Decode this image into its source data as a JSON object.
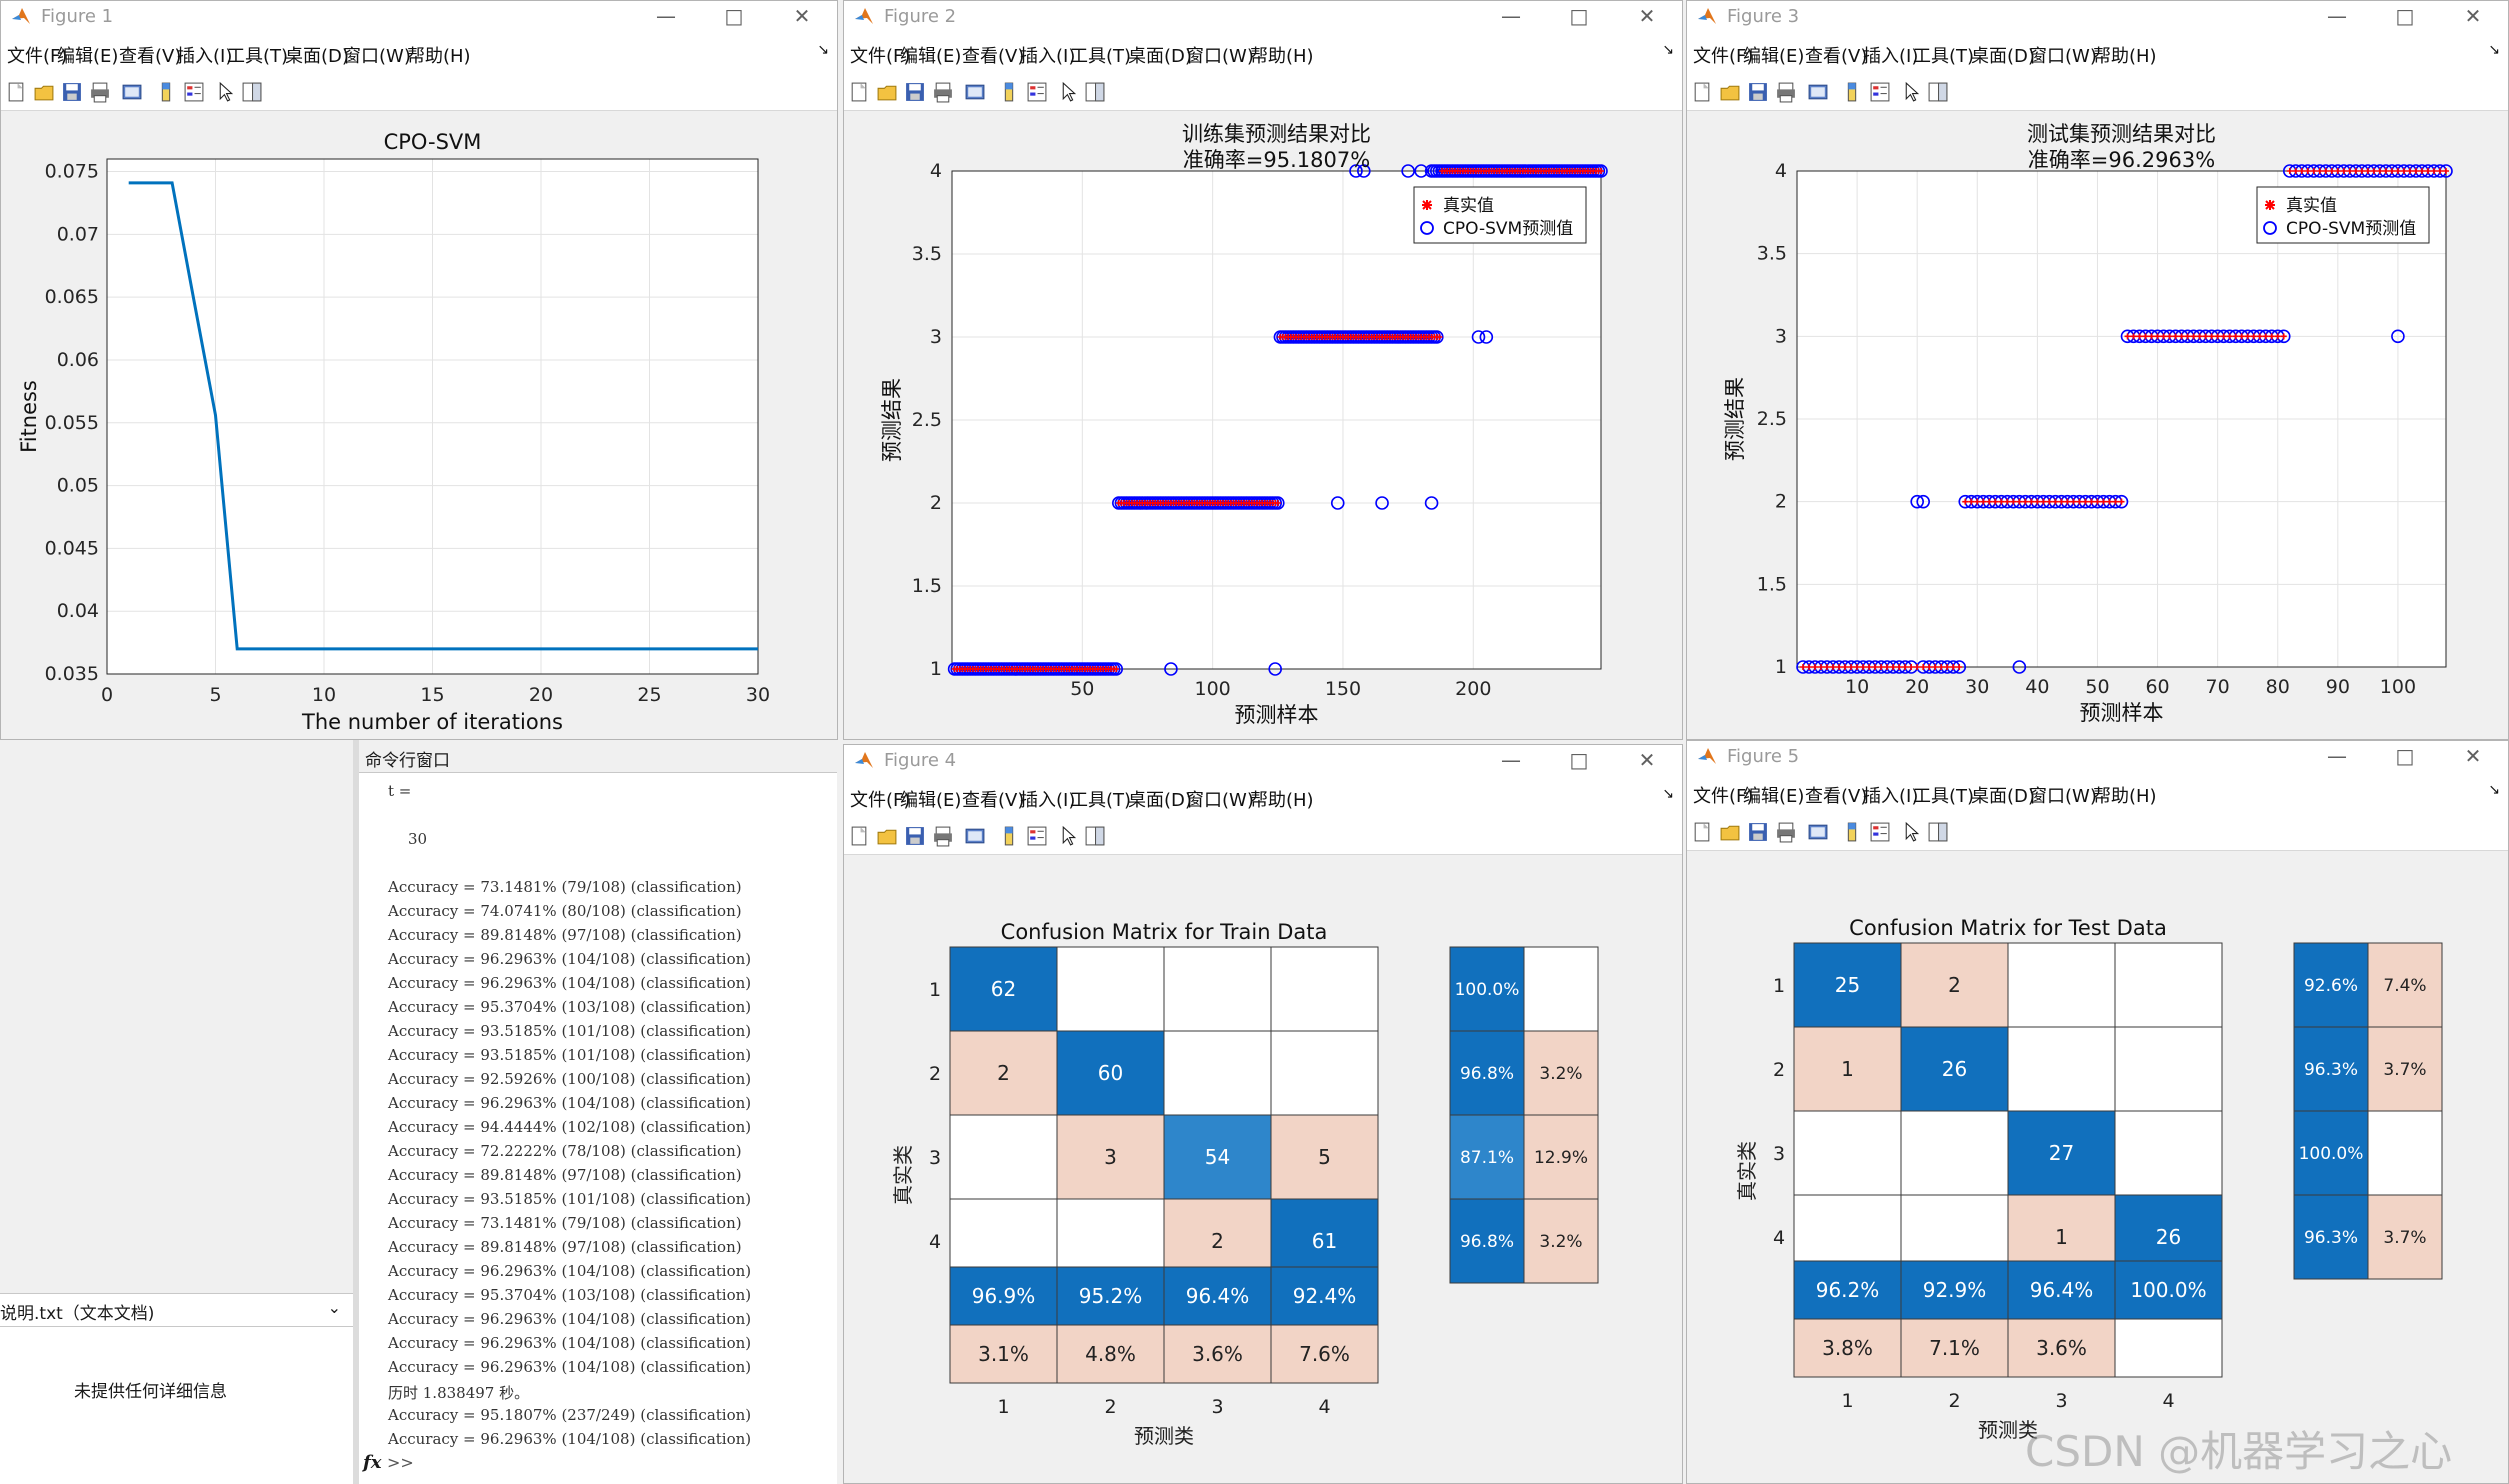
{
  "menu": [
    "文件(F)",
    "编辑(E)",
    "查看(V)",
    "插入(I)",
    "工具(T)",
    "桌面(D)",
    "窗口(W)",
    "帮助(H)"
  ],
  "windows": {
    "fig1": {
      "title": "Figure 1"
    },
    "fig2": {
      "title": "Figure 2"
    },
    "fig3": {
      "title": "Figure 3"
    },
    "fig4": {
      "title": "Figure 4"
    },
    "fig5": {
      "title": "Figure 5"
    }
  },
  "chart_data": [
    {
      "id": "fig1",
      "type": "line",
      "title": "CPO-SVM",
      "xlabel": "The number of iterations",
      "ylabel": "Fitness",
      "xlim": [
        0,
        30
      ],
      "ylim": [
        0.035,
        0.076
      ],
      "xticks": [
        0,
        5,
        10,
        15,
        20,
        25,
        30
      ],
      "yticks": [
        0.035,
        0.04,
        0.045,
        0.05,
        0.055,
        0.06,
        0.065,
        0.07,
        0.075
      ],
      "ytick_labels": [
        "0.035",
        "0.04",
        "0.045",
        "0.05",
        "0.055",
        "0.06",
        "0.065",
        "0.07",
        "0.075"
      ],
      "grid": true,
      "x": [
        1,
        2,
        3,
        4,
        5,
        6,
        7,
        8,
        9,
        10,
        11,
        12,
        13,
        14,
        15,
        16,
        17,
        18,
        19,
        20,
        21,
        22,
        23,
        24,
        25,
        26,
        27,
        28,
        29,
        30
      ],
      "y": [
        0.0741,
        0.0741,
        0.0741,
        0.0648,
        0.0556,
        0.037,
        0.037,
        0.037,
        0.037,
        0.037,
        0.037,
        0.037,
        0.037,
        0.037,
        0.037,
        0.037,
        0.037,
        0.037,
        0.037,
        0.037,
        0.037,
        0.037,
        0.037,
        0.037,
        0.037,
        0.037,
        0.037,
        0.037,
        0.037,
        0.037
      ],
      "color": "#0072bd"
    },
    {
      "id": "fig2",
      "type": "scatter",
      "title": "训练集预测结果对比",
      "subtitle": "准确率=95.1807%",
      "xlabel": "预测样本",
      "ylabel": "预测结果",
      "xlim": [
        0,
        249
      ],
      "ylim": [
        1,
        4
      ],
      "xticks": [
        50,
        100,
        150,
        200
      ],
      "yticks": [
        1,
        1.5,
        2,
        2.5,
        3,
        3.5,
        4
      ],
      "ytick_labels": [
        "1",
        "1.5",
        "2",
        "2.5",
        "3",
        "3.5",
        "4"
      ],
      "legend": [
        "真实值",
        "CPO-SVM预测值"
      ],
      "legend_position": "top-right",
      "true_segments": [
        {
          "from": 1,
          "to": 63,
          "class": 1
        },
        {
          "from": 64,
          "to": 125,
          "class": 2
        },
        {
          "from": 126,
          "to": 187,
          "class": 3
        },
        {
          "from": 188,
          "to": 249,
          "class": 4
        }
      ],
      "pred_segments": [
        {
          "from": 1,
          "to": 63,
          "class": 1
        },
        {
          "from": 64,
          "to": 125,
          "class": 2
        },
        {
          "from": 126,
          "to": 186,
          "class": 3
        },
        {
          "from": 184,
          "to": 249,
          "class": 4
        }
      ],
      "pred_outliers": [
        {
          "x": 84,
          "y": 1
        },
        {
          "x": 124,
          "y": 1
        },
        {
          "x": 148,
          "y": 2
        },
        {
          "x": 165,
          "y": 2
        },
        {
          "x": 184,
          "y": 2
        },
        {
          "x": 202,
          "y": 3
        },
        {
          "x": 205,
          "y": 3
        },
        {
          "x": 155,
          "y": 4
        },
        {
          "x": 158,
          "y": 4
        },
        {
          "x": 175,
          "y": 4
        },
        {
          "x": 180,
          "y": 4
        }
      ],
      "true_color": "#ff0000",
      "pred_color": "#0000ff"
    },
    {
      "id": "fig3",
      "type": "scatter",
      "title": "测试集预测结果对比",
      "subtitle": "准确率=96.2963%",
      "xlabel": "预测样本",
      "ylabel": "预测结果",
      "xlim": [
        0,
        108
      ],
      "ylim": [
        1,
        4
      ],
      "xticks": [
        10,
        20,
        30,
        40,
        50,
        60,
        70,
        80,
        90,
        100
      ],
      "yticks": [
        1,
        1.5,
        2,
        2.5,
        3,
        3.5,
        4
      ],
      "ytick_labels": [
        "1",
        "1.5",
        "2",
        "2.5",
        "3",
        "3.5",
        "4"
      ],
      "legend": [
        "真实值",
        "CPO-SVM预测值"
      ],
      "legend_position": "top-right",
      "true_segments": [
        {
          "from": 1,
          "to": 27,
          "class": 1
        },
        {
          "from": 28,
          "to": 54,
          "class": 2
        },
        {
          "from": 55,
          "to": 81,
          "class": 3
        },
        {
          "from": 82,
          "to": 108,
          "class": 4
        }
      ],
      "pred_segments": [
        {
          "from": 1,
          "to": 19,
          "class": 1
        },
        {
          "from": 21,
          "to": 27,
          "class": 1
        },
        {
          "from": 28,
          "to": 54,
          "class": 2
        },
        {
          "from": 55,
          "to": 81,
          "class": 3
        },
        {
          "from": 82,
          "to": 108,
          "class": 4
        }
      ],
      "pred_outliers": [
        {
          "x": 20,
          "y": 2
        },
        {
          "x": 21,
          "y": 2
        },
        {
          "x": 37,
          "y": 1
        },
        {
          "x": 100,
          "y": 3
        }
      ],
      "true_color": "#ff0000",
      "pred_color": "#0000ff"
    },
    {
      "id": "fig4",
      "type": "heatmap",
      "title": "Confusion Matrix for Train Data",
      "xlabel": "预测类",
      "ylabel": "真实类",
      "labels": [
        "1",
        "2",
        "3",
        "4"
      ],
      "matrix": [
        [
          62,
          "",
          "",
          ""
        ],
        [
          2,
          60,
          "",
          ""
        ],
        [
          "",
          3,
          54,
          5
        ],
        [
          "",
          "",
          2,
          61
        ]
      ],
      "row_summary": [
        [
          "100.0%",
          ""
        ],
        [
          "96.8%",
          "3.2%"
        ],
        [
          "87.1%",
          "12.9%"
        ],
        [
          "96.8%",
          "3.2%"
        ]
      ],
      "col_summary": [
        [
          "96.9%",
          "3.1%"
        ],
        [
          "95.2%",
          "4.8%"
        ],
        [
          "96.4%",
          "3.6%"
        ],
        [
          "92.4%",
          "7.6%"
        ]
      ]
    },
    {
      "id": "fig5",
      "type": "heatmap",
      "title": "Confusion Matrix for Test Data",
      "xlabel": "预测类",
      "ylabel": "真实类",
      "labels": [
        "1",
        "2",
        "3",
        "4"
      ],
      "matrix": [
        [
          25,
          2,
          "",
          ""
        ],
        [
          1,
          26,
          "",
          ""
        ],
        [
          "",
          "",
          27,
          ""
        ],
        [
          "",
          "",
          1,
          26
        ]
      ],
      "row_summary": [
        [
          "92.6%",
          "7.4%"
        ],
        [
          "96.3%",
          "3.7%"
        ],
        [
          "100.0%",
          ""
        ],
        [
          "96.3%",
          "3.7%"
        ]
      ],
      "col_summary": [
        [
          "96.2%",
          "3.8%"
        ],
        [
          "92.9%",
          "7.1%"
        ],
        [
          "96.4%",
          "3.6%"
        ],
        [
          "100.0%",
          ""
        ]
      ]
    }
  ],
  "command_window": {
    "header": "命令行窗口",
    "lines": [
      "t =",
      "",
      "30",
      "",
      "Accuracy = 73.1481% (79/108) (classification)",
      "Accuracy = 74.0741% (80/108) (classification)",
      "Accuracy = 89.8148% (97/108) (classification)",
      "Accuracy = 96.2963% (104/108) (classification)",
      "Accuracy = 96.2963% (104/108) (classification)",
      "Accuracy = 95.3704% (103/108) (classification)",
      "Accuracy = 93.5185% (101/108) (classification)",
      "Accuracy = 93.5185% (101/108) (classification)",
      "Accuracy = 92.5926% (100/108) (classification)",
      "Accuracy = 96.2963% (104/108) (classification)",
      "Accuracy = 94.4444% (102/108) (classification)",
      "Accuracy = 72.2222% (78/108) (classification)",
      "Accuracy = 89.8148% (97/108) (classification)",
      "Accuracy = 93.5185% (101/108) (classification)",
      "Accuracy = 73.1481% (79/108) (classification)",
      "Accuracy = 89.8148% (97/108) (classification)",
      "Accuracy = 96.2963% (104/108) (classification)",
      "Accuracy = 95.3704% (103/108) (classification)",
      "Accuracy = 96.2963% (104/108) (classification)",
      "Accuracy = 96.2963% (104/108) (classification)",
      "Accuracy = 96.2963% (104/108) (classification)",
      "历时 1.838497 秒。",
      "Accuracy = 95.1807% (237/249) (classification)",
      "Accuracy = 96.2963% (104/108) (classification)"
    ],
    "prompt_fx": "fx",
    "prompt": ">>"
  },
  "details_panel": {
    "file": "说明.txt（文本文档)",
    "message": "未提供任何详细信息"
  },
  "watermark": "CSDN @机器学习之心"
}
